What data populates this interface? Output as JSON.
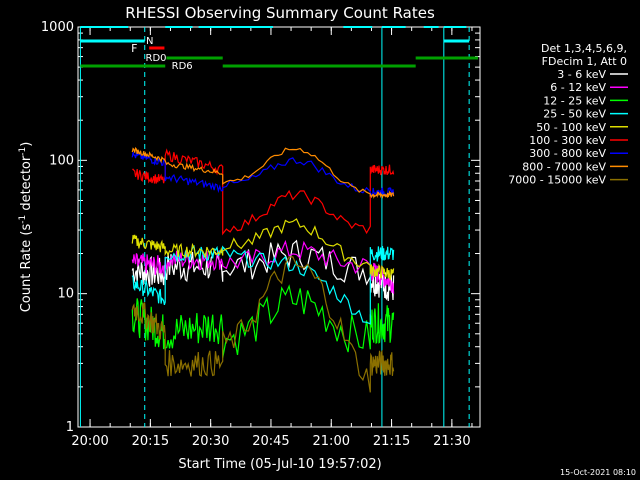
{
  "chart_data": {
    "type": "line",
    "title": "RHESSI Observing Summary Count Rates",
    "xlabel": "Start Time (05-Jul-10 19:57:02)",
    "ylabel_main": "Count Rate (s",
    "ylabel_sup1": "-1",
    "ylabel_mid": " detector",
    "ylabel_sup2": "-1",
    "ylabel_end": ")",
    "y_scale": "log",
    "ylim": [
      1,
      1000
    ],
    "xlim": [
      "19:57",
      "21:37"
    ],
    "x_ticks": [
      "20:00",
      "20:15",
      "20:30",
      "20:45",
      "21:00",
      "21:15",
      "21:30"
    ],
    "y_ticks": [
      "1",
      "10",
      "100",
      "1000"
    ],
    "timestamp": "15-Oct-2021 08:10",
    "legend_header": [
      "Det 1,3,4,5,6,9,",
      "FDecim 1, Att 0"
    ],
    "flags": [
      {
        "name": "N",
        "color": "#00ffff"
      },
      {
        "name": "F",
        "color": "#ff0000"
      },
      {
        "name": "RD0",
        "color": "#00a000"
      },
      {
        "name": "RD6",
        "color": "#00a000"
      }
    ],
    "series": [
      {
        "name": "3 - 6 keV",
        "color": "#ffffff"
      },
      {
        "name": "6 - 12 keV",
        "color": "#ff00ff"
      },
      {
        "name": "12 - 25 keV",
        "color": "#00ff00"
      },
      {
        "name": "25 - 50 keV",
        "color": "#00ffff"
      },
      {
        "name": "50 - 100 keV",
        "color": "#dddd00"
      },
      {
        "name": "100 - 300 keV",
        "color": "#ff0000"
      },
      {
        "name": "300 - 800 keV",
        "color": "#0000ff"
      },
      {
        "name": "800 - 7000 keV",
        "color": "#ff8c00"
      },
      {
        "name": "7000 - 15000 keV",
        "color": "#8b7000"
      }
    ]
  }
}
